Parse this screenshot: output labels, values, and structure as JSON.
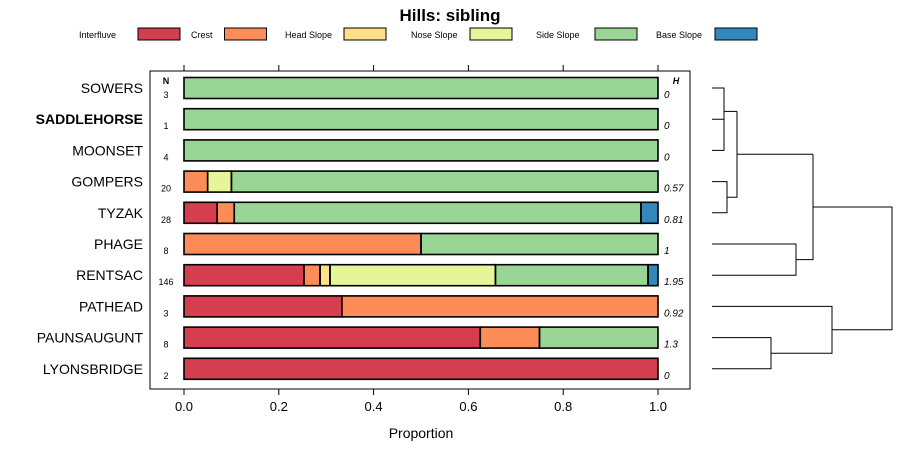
{
  "chart_data": {
    "type": "bar",
    "orientation": "horizontal-stacked",
    "title": "Hills: sibling",
    "xlabel": "Proportion",
    "xlim": [
      0,
      1
    ],
    "xticks": [
      "0.0",
      "0.2",
      "0.4",
      "0.6",
      "0.8",
      "1.0"
    ],
    "xtick_values": [
      0,
      0.2,
      0.4,
      0.6,
      0.8,
      1.0
    ],
    "n_header": "N",
    "h_header": "H",
    "legend": [
      {
        "name": "Interfluve",
        "color": "#d53e4f"
      },
      {
        "name": "Crest",
        "color": "#fc8d59"
      },
      {
        "name": "Head Slope",
        "color": "#fee08b"
      },
      {
        "name": "Nose Slope",
        "color": "#e6f598"
      },
      {
        "name": "Side Slope",
        "color": "#99d594"
      },
      {
        "name": "Base Slope",
        "color": "#3288bd"
      }
    ],
    "categories": [
      "SOWERS",
      "SADDLEHORSE",
      "MOONSET",
      "GOMPERS",
      "TYZAK",
      "PHAGE",
      "RENTSAC",
      "PATHEAD",
      "PAUNSAUGUNT",
      "LYONSBRIDGE"
    ],
    "bold_category": "SADDLEHORSE",
    "n_values": [
      "3",
      "1",
      "4",
      "20",
      "28",
      "8",
      "146",
      "3",
      "8",
      "2"
    ],
    "h_values": [
      "0",
      "0",
      "0",
      "0.57",
      "0.81",
      "1",
      "1.95",
      "0.92",
      "1.3",
      "0"
    ],
    "series": [
      {
        "name": "Interfluve",
        "values": [
          0,
          0,
          0,
          0,
          0.07,
          0,
          0.253,
          0.333,
          0.625,
          1.0
        ]
      },
      {
        "name": "Crest",
        "values": [
          0,
          0,
          0,
          0.05,
          0.036,
          0.5,
          0.034,
          0.667,
          0.125,
          0
        ]
      },
      {
        "name": "Head Slope",
        "values": [
          0,
          0,
          0,
          0,
          0,
          0,
          0.021,
          0,
          0,
          0
        ]
      },
      {
        "name": "Nose Slope",
        "values": [
          0,
          0,
          0,
          0.05,
          0,
          0,
          0.349,
          0,
          0,
          0
        ]
      },
      {
        "name": "Side Slope",
        "values": [
          1.0,
          1.0,
          1.0,
          0.9,
          0.858,
          0.5,
          0.322,
          0,
          0.25,
          0
        ]
      },
      {
        "name": "Base Slope",
        "values": [
          0,
          0,
          0,
          0,
          0.036,
          0,
          0.021,
          0,
          0,
          0
        ]
      }
    ],
    "dendrogram": "hierarchical clustering of rows"
  }
}
